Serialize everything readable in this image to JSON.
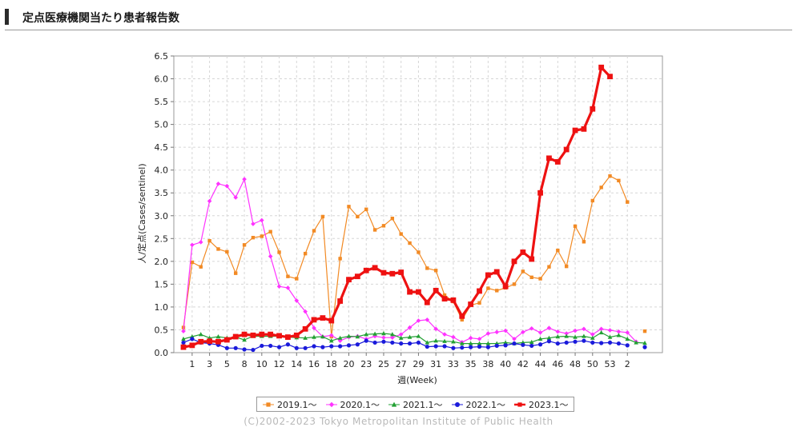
{
  "header": {
    "title": "定点医療機関当たり患者報告数"
  },
  "copyright": "(C)2002-2023 Tokyo Metropolitan Institute of Public Health",
  "chart_data": {
    "type": "line",
    "xlabel": "週(Week)",
    "ylabel": "人/定点(Cases/sentinel)",
    "ylim": [
      0,
      6.5
    ],
    "yticks": [
      "0.0",
      "0.5",
      "1.0",
      "1.5",
      "2.0",
      "2.5",
      "3.0",
      "3.5",
      "4.0",
      "4.5",
      "5.0",
      "5.5",
      "6.0",
      "6.5"
    ],
    "xtick_labels": [
      "1",
      "3",
      "5",
      "8",
      "10",
      "12",
      "14",
      "16",
      "18",
      "20",
      "23",
      "25",
      "27",
      "29",
      "31",
      "33",
      "35",
      "38",
      "40",
      "42",
      "44",
      "46",
      "48",
      "50",
      "53",
      "2"
    ],
    "grid": true,
    "legend_position": "bottom",
    "series": [
      {
        "name": "2019.1～",
        "color": "#f28a24",
        "marker": "square",
        "values": [
          0.55,
          1.98,
          1.88,
          2.45,
          2.27,
          2.21,
          1.74,
          2.36,
          2.52,
          2.55,
          2.65,
          2.2,
          1.67,
          1.62,
          2.17,
          2.67,
          2.98,
          0.35,
          2.06,
          3.2,
          2.98,
          3.14,
          2.69,
          2.78,
          2.94,
          2.6,
          2.4,
          2.2,
          1.85,
          1.8,
          1.26,
          1.12,
          0.72,
          1.04,
          1.09,
          1.41,
          1.36,
          1.42,
          1.5,
          1.78,
          1.65,
          1.62,
          1.88,
          2.24,
          1.89,
          2.77,
          2.43,
          3.33,
          3.62,
          3.87,
          3.77,
          3.3,
          null,
          0.47
        ]
      },
      {
        "name": "2020.1～",
        "color": "#ff33ff",
        "marker": "diamond",
        "values": [
          0.47,
          2.36,
          2.42,
          3.32,
          3.7,
          3.65,
          3.4,
          3.8,
          2.82,
          2.9,
          2.11,
          1.45,
          1.42,
          1.14,
          0.9,
          0.54,
          0.35,
          0.38,
          0.26,
          0.34,
          0.36,
          0.3,
          0.36,
          0.33,
          0.33,
          0.4,
          0.55,
          0.7,
          0.72,
          0.52,
          0.4,
          0.34,
          0.23,
          0.32,
          0.3,
          0.42,
          0.45,
          0.48,
          0.3,
          0.45,
          0.53,
          0.44,
          0.54,
          0.46,
          0.42,
          0.48,
          0.52,
          0.4,
          0.52,
          0.49,
          0.46,
          0.44,
          0.24,
          null
        ]
      },
      {
        "name": "2021.1～",
        "color": "#22a033",
        "marker": "triangle",
        "values": [
          0.3,
          0.35,
          0.4,
          0.32,
          0.35,
          0.32,
          0.34,
          0.28,
          0.36,
          0.36,
          0.36,
          0.36,
          0.34,
          0.33,
          0.32,
          0.34,
          0.35,
          0.26,
          0.32,
          0.36,
          0.35,
          0.4,
          0.41,
          0.42,
          0.4,
          0.32,
          0.34,
          0.36,
          0.22,
          0.26,
          0.25,
          0.24,
          0.2,
          0.2,
          0.2,
          0.2,
          0.2,
          0.22,
          0.2,
          0.22,
          0.23,
          0.3,
          0.32,
          0.35,
          0.36,
          0.34,
          0.36,
          0.32,
          0.44,
          0.34,
          0.38,
          0.3,
          0.22,
          0.21
        ]
      },
      {
        "name": "2022.1～",
        "color": "#1a1adb",
        "marker": "circle",
        "values": [
          0.22,
          0.3,
          0.22,
          0.2,
          0.17,
          0.1,
          0.1,
          0.07,
          0.06,
          0.15,
          0.15,
          0.12,
          0.18,
          0.1,
          0.1,
          0.14,
          0.12,
          0.14,
          0.14,
          0.16,
          0.18,
          0.26,
          0.22,
          0.24,
          0.22,
          0.2,
          0.2,
          0.22,
          0.13,
          0.14,
          0.14,
          0.1,
          0.11,
          0.12,
          0.13,
          0.12,
          0.15,
          0.16,
          0.2,
          0.17,
          0.15,
          0.18,
          0.25,
          0.2,
          0.22,
          0.24,
          0.26,
          0.22,
          0.21,
          0.22,
          0.2,
          0.16,
          null,
          0.12
        ]
      },
      {
        "name": "2023.1～",
        "color": "#ee1111",
        "marker": "square",
        "values": [
          0.12,
          0.16,
          0.24,
          0.25,
          0.24,
          0.28,
          0.35,
          0.4,
          0.38,
          0.4,
          0.4,
          0.37,
          0.34,
          0.38,
          0.52,
          0.72,
          0.76,
          0.7,
          1.13,
          1.6,
          1.67,
          1.8,
          1.86,
          1.75,
          1.73,
          1.76,
          1.33,
          1.33,
          1.1,
          1.36,
          1.18,
          1.15,
          0.8,
          1.06,
          1.35,
          1.7,
          1.77,
          1.45,
          2.0,
          2.2,
          2.05,
          3.5,
          4.26,
          4.18,
          4.45,
          4.87,
          4.9,
          5.34,
          6.25,
          6.05
        ]
      }
    ]
  }
}
